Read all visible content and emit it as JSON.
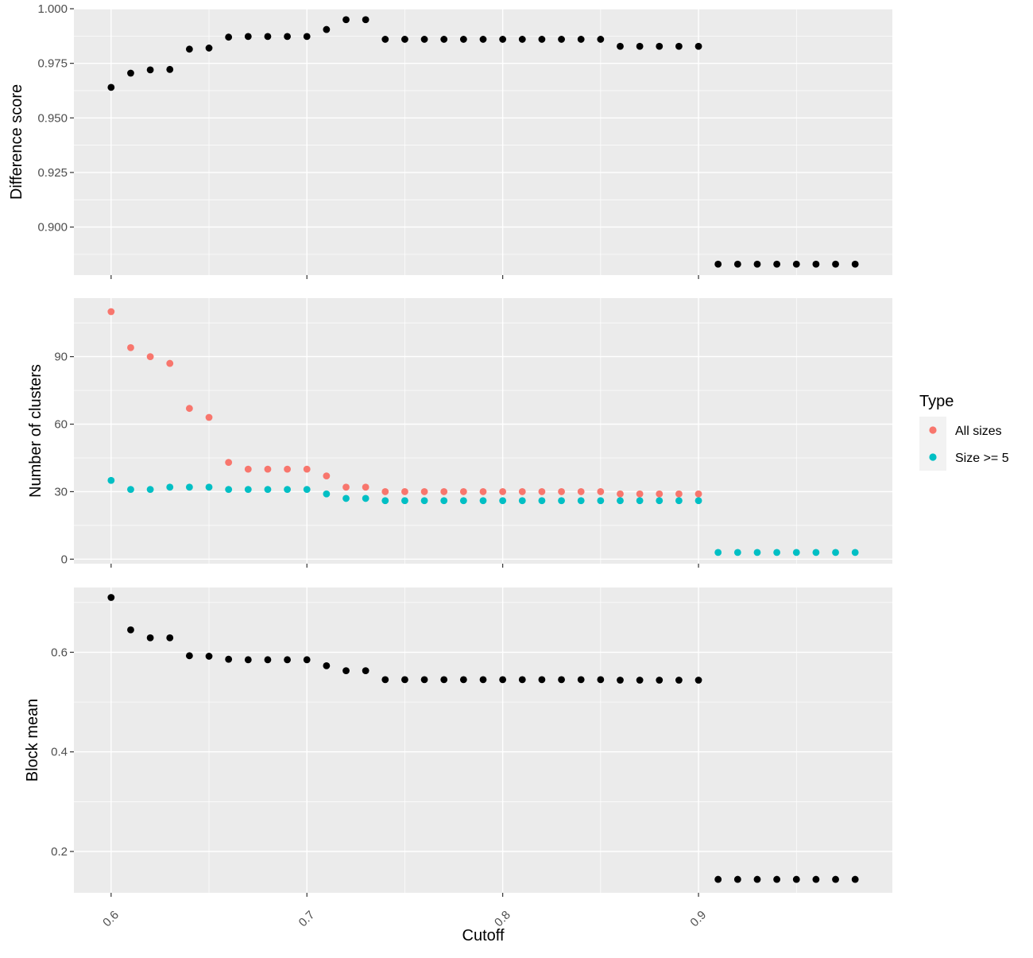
{
  "chart_data": {
    "type": "scatter",
    "layout": "facets-stacked-vertical",
    "shared_x": true,
    "xlabel": "Cutoff",
    "x_ticks": [
      "0.6",
      "0.7",
      "0.8",
      "0.9"
    ],
    "x_tick_values": [
      0.6,
      0.7,
      0.8,
      0.9
    ],
    "xlim": [
      0.581,
      0.999
    ],
    "grid": true,
    "background": "#EBEBEB",
    "gridline_color": "#FFFFFF",
    "legend": {
      "title": "Type",
      "placement": "right",
      "entries": [
        {
          "label": "All sizes",
          "color": "#F8766D"
        },
        {
          "label": "Size >= 5",
          "color": "#00BFC4"
        }
      ]
    },
    "x": [
      0.6,
      0.61,
      0.62,
      0.63,
      0.64,
      0.65,
      0.66,
      0.67,
      0.68,
      0.69,
      0.7,
      0.71,
      0.72,
      0.73,
      0.74,
      0.75,
      0.76,
      0.77,
      0.78,
      0.79,
      0.8,
      0.81,
      0.82,
      0.83,
      0.84,
      0.85,
      0.86,
      0.87,
      0.88,
      0.89,
      0.9,
      0.91,
      0.92,
      0.93,
      0.94,
      0.95,
      0.96,
      0.97,
      0.98
    ],
    "panels": [
      {
        "ylabel": "Difference score",
        "ylim": [
          0.878,
          1.0
        ],
        "y_ticks": [
          "0.900",
          "0.925",
          "0.950",
          "0.975",
          "1.000"
        ],
        "y_tick_values": [
          0.9,
          0.925,
          0.95,
          0.975,
          1.0
        ],
        "series": [
          {
            "color": "#000000",
            "values": [
              0.964,
              0.9705,
              0.972,
              0.9722,
              0.9815,
              0.982,
              0.987,
              0.9873,
              0.9873,
              0.9873,
              0.9873,
              0.9905,
              0.995,
              0.995,
              0.986,
              0.986,
              0.986,
              0.986,
              0.986,
              0.986,
              0.986,
              0.986,
              0.986,
              0.986,
              0.986,
              0.986,
              0.9828,
              0.9828,
              0.9828,
              0.9828,
              0.9828,
              0.883,
              0.883,
              0.883,
              0.883,
              0.883,
              0.883,
              0.883,
              0.883
            ]
          }
        ]
      },
      {
        "ylabel": "Number of clusters",
        "ylim": [
          -2,
          116
        ],
        "y_ticks": [
          "0",
          "30",
          "60",
          "90"
        ],
        "y_tick_values": [
          0,
          30,
          60,
          90
        ],
        "series": [
          {
            "name": "All sizes",
            "color": "#F8766D",
            "values": [
              110,
              94,
              90,
              87,
              67,
              63,
              43,
              40,
              40,
              40,
              40,
              37,
              32,
              32,
              30,
              30,
              30,
              30,
              30,
              30,
              30,
              30,
              30,
              30,
              30,
              30,
              29,
              29,
              29,
              29,
              29,
              null,
              null,
              null,
              null,
              null,
              null,
              null,
              null
            ]
          },
          {
            "name": "Size >= 5",
            "color": "#00BFC4",
            "values": [
              35,
              31,
              31,
              32,
              32,
              32,
              31,
              31,
              31,
              31,
              31,
              29,
              27,
              27,
              26,
              26,
              26,
              26,
              26,
              26,
              26,
              26,
              26,
              26,
              26,
              26,
              26,
              26,
              26,
              26,
              26,
              3,
              3,
              3,
              3,
              3,
              3,
              3,
              3
            ]
          }
        ]
      },
      {
        "ylabel": "Block mean",
        "ylim": [
          0.117,
          0.73
        ],
        "y_ticks": [
          "0.2",
          "0.4",
          "0.6"
        ],
        "y_tick_values": [
          0.2,
          0.4,
          0.6
        ],
        "series": [
          {
            "color": "#000000",
            "values": [
              0.71,
              0.645,
              0.629,
              0.629,
              0.593,
              0.592,
              0.586,
              0.585,
              0.585,
              0.585,
              0.585,
              0.573,
              0.563,
              0.563,
              0.545,
              0.545,
              0.545,
              0.545,
              0.545,
              0.545,
              0.545,
              0.545,
              0.545,
              0.545,
              0.545,
              0.545,
              0.544,
              0.544,
              0.544,
              0.544,
              0.544,
              0.144,
              0.144,
              0.144,
              0.144,
              0.144,
              0.144,
              0.144,
              0.144
            ]
          }
        ]
      }
    ]
  }
}
